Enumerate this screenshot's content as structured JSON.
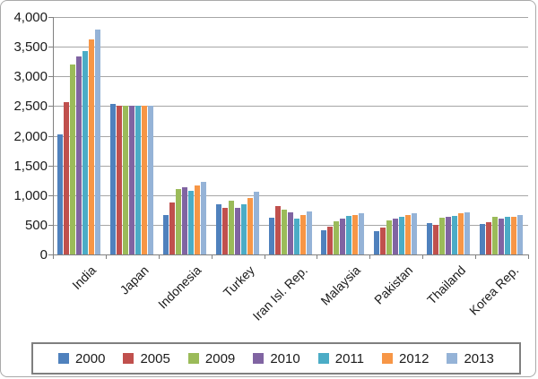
{
  "chart_data": {
    "type": "bar",
    "title": "",
    "xlabel": "",
    "ylabel": "",
    "categories": [
      "India",
      "Japan",
      "Indonesia",
      "Turkey",
      "Iran Isl. Rep.",
      "Malaysia",
      "Pakistan",
      "Thailand",
      "Korea Rep."
    ],
    "series": [
      {
        "name": "2000",
        "color": "#4F81BD",
        "values": [
          2020,
          2540,
          660,
          840,
          620,
          410,
          390,
          530,
          510
        ]
      },
      {
        "name": "2005",
        "color": "#C0504D",
        "values": [
          2560,
          2500,
          870,
          780,
          810,
          470,
          450,
          500,
          540
        ]
      },
      {
        "name": "2009",
        "color": "#9BBB59",
        "values": [
          3200,
          2500,
          1100,
          900,
          760,
          560,
          580,
          620,
          630
        ]
      },
      {
        "name": "2010",
        "color": "#8064A2",
        "values": [
          3340,
          2510,
          1140,
          780,
          710,
          610,
          600,
          630,
          610
        ]
      },
      {
        "name": "2011",
        "color": "#4BACC6",
        "values": [
          3420,
          2500,
          1070,
          840,
          600,
          650,
          640,
          650,
          630
        ]
      },
      {
        "name": "2012",
        "color": "#F79646",
        "values": [
          3620,
          2500,
          1160,
          950,
          660,
          670,
          660,
          690,
          640
        ]
      },
      {
        "name": "2013",
        "color": "#95B3D7",
        "values": [
          3790,
          2510,
          1220,
          1050,
          720,
          700,
          700,
          710,
          660
        ]
      }
    ],
    "ylim": [
      0,
      4000
    ],
    "y_tick_step": 500,
    "y_tick_labels": [
      "0",
      "500",
      "1,000",
      "1,500",
      "2,000",
      "2,500",
      "3,000",
      "3,500",
      "4,000"
    ],
    "grid": true,
    "legend_position": "bottom",
    "gridline_color": "#a6a6a6",
    "axis_color": "#808080",
    "text_color": "#1a1a1a"
  }
}
